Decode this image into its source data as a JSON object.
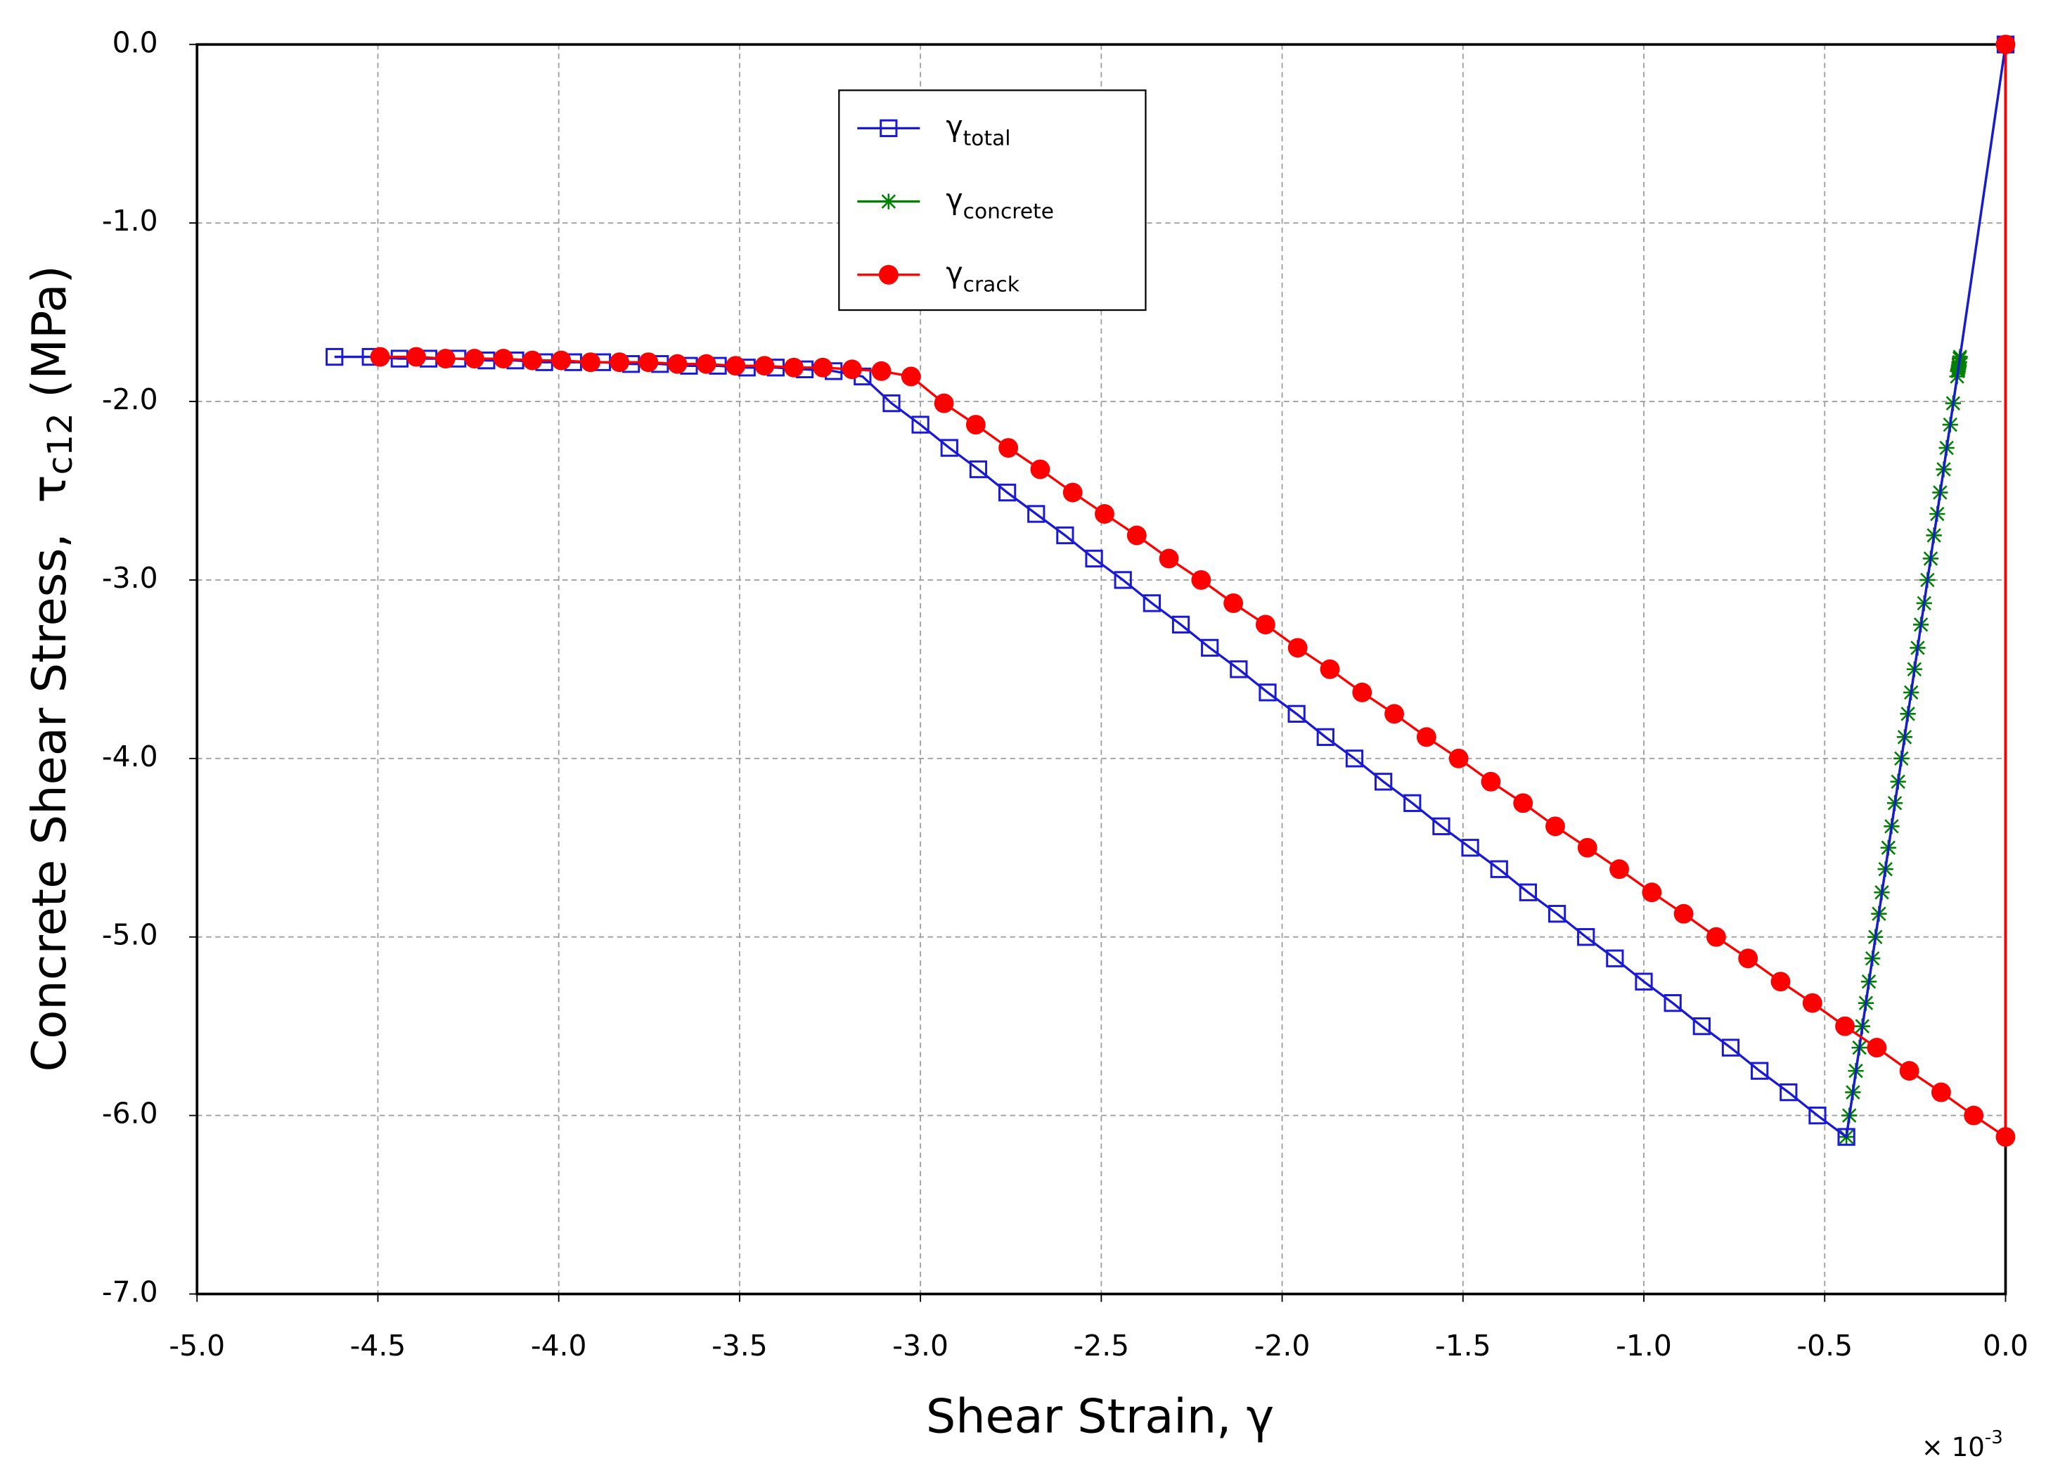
{
  "chart_data": {
    "type": "line",
    "xlabel": "Shear Strain, γ",
    "ylabel": {
      "text": "Concrete Shear Stress,  τ",
      "sub": "c12",
      "after": " (MPa)"
    },
    "x_multiplier": {
      "text": "× 10",
      "sup": "-3"
    },
    "xlim": [
      -5,
      0
    ],
    "ylim": [
      -7,
      0
    ],
    "xticks": [
      {
        "value": -5,
        "label": "-5.0"
      },
      {
        "value": -4.5,
        "label": "-4.5"
      },
      {
        "value": -4,
        "label": "-4.0"
      },
      {
        "value": -3.5,
        "label": "-3.5"
      },
      {
        "value": -3,
        "label": "-3.0"
      },
      {
        "value": -2.5,
        "label": "-2.5"
      },
      {
        "value": -2,
        "label": "-2.0"
      },
      {
        "value": -1.5,
        "label": "-1.5"
      },
      {
        "value": -1,
        "label": "-1.0"
      },
      {
        "value": -0.5,
        "label": "-0.5"
      },
      {
        "value": 0,
        "label": "0.0"
      }
    ],
    "yticks": [
      {
        "value": 0,
        "label": "0.0"
      },
      {
        "value": -1,
        "label": "-1.0"
      },
      {
        "value": -2,
        "label": "-2.0"
      },
      {
        "value": -3,
        "label": "-3.0"
      },
      {
        "value": -4,
        "label": "-4.0"
      },
      {
        "value": -5,
        "label": "-5.0"
      },
      {
        "value": -6,
        "label": "-6.0"
      },
      {
        "value": -7,
        "label": "-7.0"
      }
    ],
    "grid": true,
    "legend": "upper center",
    "series": [
      {
        "name": "γ",
        "subscript": "total",
        "color": "#1a1ad6",
        "marker": "square",
        "x": [
          0,
          -0.44,
          -0.52,
          -0.6,
          -0.68,
          -0.76,
          -0.84,
          -0.92,
          -1.0,
          -1.08,
          -1.16,
          -1.24,
          -1.32,
          -1.4,
          -1.48,
          -1.56,
          -1.64,
          -1.72,
          -1.8,
          -1.88,
          -1.96,
          -2.04,
          -2.12,
          -2.2,
          -2.28,
          -2.36,
          -2.44,
          -2.52,
          -2.6,
          -2.68,
          -2.76,
          -2.84,
          -2.92,
          -3.0,
          -3.08,
          -3.16,
          -3.24,
          -3.32,
          -3.4,
          -3.48,
          -3.56,
          -3.64,
          -3.72,
          -3.8,
          -3.88,
          -3.96,
          -4.04,
          -4.12,
          -4.2,
          -4.28,
          -4.36,
          -4.44,
          -4.52,
          -4.62
        ],
        "values": [
          0,
          -6.12,
          -6.0,
          -5.87,
          -5.75,
          -5.62,
          -5.5,
          -5.37,
          -5.25,
          -5.12,
          -5.0,
          -4.87,
          -4.75,
          -4.62,
          -4.5,
          -4.38,
          -4.25,
          -4.13,
          -4.0,
          -3.88,
          -3.75,
          -3.63,
          -3.5,
          -3.38,
          -3.25,
          -3.13,
          -3.0,
          -2.88,
          -2.75,
          -2.63,
          -2.51,
          -2.38,
          -2.26,
          -2.13,
          -2.01,
          -1.86,
          -1.83,
          -1.82,
          -1.81,
          -1.81,
          -1.8,
          -1.8,
          -1.79,
          -1.79,
          -1.78,
          -1.78,
          -1.78,
          -1.77,
          -1.77,
          -1.76,
          -1.76,
          -1.76,
          -1.75,
          -1.75
        ]
      },
      {
        "name": "γ",
        "subscript": "concrete",
        "color": "#008000",
        "marker": "star",
        "x": [
          0,
          -0.44,
          -0.432,
          -0.422,
          -0.414,
          -0.404,
          -0.396,
          -0.386,
          -0.378,
          -0.368,
          -0.36,
          -0.35,
          -0.342,
          -0.332,
          -0.324,
          -0.315,
          -0.306,
          -0.297,
          -0.288,
          -0.279,
          -0.27,
          -0.261,
          -0.252,
          -0.243,
          -0.234,
          -0.225,
          -0.216,
          -0.207,
          -0.198,
          -0.189,
          -0.181,
          -0.171,
          -0.163,
          -0.153,
          -0.145,
          -0.134,
          -0.132,
          -0.131,
          -0.13,
          -0.129,
          -0.128,
          -0.127,
          -0.126
        ],
        "values": [
          0,
          -6.12,
          -6.0,
          -5.87,
          -5.75,
          -5.62,
          -5.5,
          -5.37,
          -5.25,
          -5.12,
          -5.0,
          -4.87,
          -4.75,
          -4.62,
          -4.5,
          -4.38,
          -4.25,
          -4.13,
          -4.0,
          -3.88,
          -3.75,
          -3.63,
          -3.5,
          -3.38,
          -3.25,
          -3.13,
          -3.0,
          -2.88,
          -2.75,
          -2.63,
          -2.51,
          -2.38,
          -2.26,
          -2.13,
          -2.01,
          -1.86,
          -1.83,
          -1.82,
          -1.81,
          -1.8,
          -1.78,
          -1.76,
          -1.75
        ]
      },
      {
        "name": "γ",
        "subscript": "crack",
        "color": "#ff0000",
        "marker": "circle",
        "x": [
          0,
          0,
          -0.088,
          -0.178,
          -0.266,
          -0.356,
          -0.444,
          -0.534,
          -0.622,
          -0.712,
          -0.8,
          -0.89,
          -0.978,
          -1.068,
          -1.156,
          -1.245,
          -1.334,
          -1.423,
          -1.512,
          -1.601,
          -1.69,
          -1.779,
          -1.868,
          -1.957,
          -2.046,
          -2.135,
          -2.224,
          -2.313,
          -2.402,
          -2.491,
          -2.579,
          -2.669,
          -2.757,
          -2.847,
          -2.935,
          -3.026,
          -3.108,
          -3.189,
          -3.27,
          -3.35,
          -3.431,
          -3.511,
          -3.592,
          -3.672,
          -3.752,
          -3.832,
          -3.912,
          -3.993,
          -4.073,
          -4.153,
          -4.233,
          -4.313,
          -4.394,
          -4.494
        ],
        "values": [
          0,
          -6.12,
          -6.0,
          -5.87,
          -5.75,
          -5.62,
          -5.5,
          -5.37,
          -5.25,
          -5.12,
          -5.0,
          -4.87,
          -4.75,
          -4.62,
          -4.5,
          -4.38,
          -4.25,
          -4.13,
          -4.0,
          -3.88,
          -3.75,
          -3.63,
          -3.5,
          -3.38,
          -3.25,
          -3.13,
          -3.0,
          -2.88,
          -2.75,
          -2.63,
          -2.51,
          -2.38,
          -2.26,
          -2.13,
          -2.01,
          -1.86,
          -1.83,
          -1.82,
          -1.81,
          -1.81,
          -1.8,
          -1.8,
          -1.79,
          -1.79,
          -1.78,
          -1.78,
          -1.78,
          -1.77,
          -1.77,
          -1.76,
          -1.76,
          -1.76,
          -1.75,
          -1.75
        ]
      }
    ]
  }
}
